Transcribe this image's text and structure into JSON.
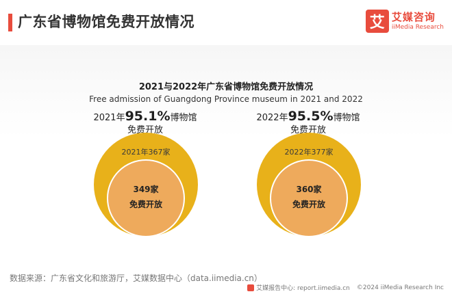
{
  "header": {
    "title": "广东省博物馆免费开放情况",
    "brand_logo_char": "艾",
    "brand_name": "艾媒咨询",
    "brand_en": "iiMedia Research"
  },
  "chart_data": {
    "type": "nested-circle",
    "title": "2021与2022年广东省博物馆免费开放情况",
    "subtitle": "Free admission of Guangdong Province museum in 2021 and 2022",
    "items": [
      {
        "caption_prefix": "2021年",
        "percent_label": "95.1%",
        "caption_suffix": "博物馆",
        "caption_line2": "免费开放",
        "total": 367,
        "total_label": "2021年367家",
        "free": 349,
        "free_label": "349家",
        "free_text": "免费开放"
      },
      {
        "caption_prefix": "2022年",
        "percent_label": "95.5%",
        "caption_suffix": "博物馆",
        "caption_line2": "免费开放",
        "total": 377,
        "total_label": "2022年377家",
        "free": 360,
        "free_label": "360家",
        "free_text": "免费开放"
      }
    ],
    "colors": {
      "outer": "#e8b11a",
      "inner": "#eeaa5c",
      "inner_stroke": "#ffffff"
    }
  },
  "footer": {
    "source": "数据来源：广东省文化和旅游厅，艾媒数据中心（data.iimedia.cn）",
    "report_center": "艾媒报告中心: report.iimedia.cn",
    "copyright": "©2024  iiMedia Research  Inc"
  }
}
